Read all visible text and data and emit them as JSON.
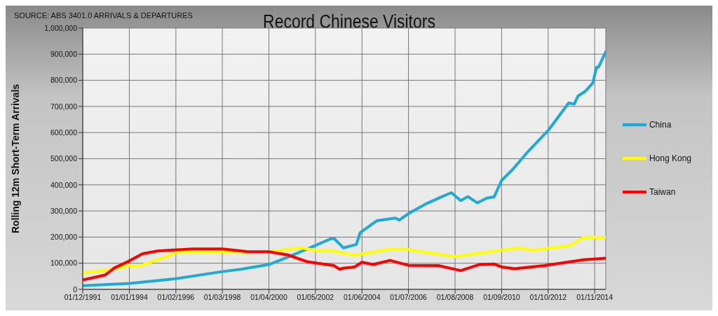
{
  "chart_data": {
    "type": "line",
    "title": "Record Chinese Visitors",
    "ylabel": "Rolling 12m Short-Term Arrivals",
    "annotations": [
      "SOURCE: ABS 3401.0 ARRIVALS & DEPARTURES"
    ],
    "series": [
      {
        "name": "China",
        "color": "#1ea9d8",
        "x": [
          "1991-12",
          "1994-01",
          "1996-02",
          "1998-03",
          "1999-01",
          "2000-04",
          "2001-02",
          "2002-05",
          "2003-01",
          "2003-03",
          "2003-08",
          "2004-03",
          "2004-05",
          "2005-02",
          "2005-12",
          "2006-02",
          "2006-07",
          "2007-04",
          "2008-01",
          "2008-06",
          "2008-11",
          "2009-03",
          "2009-08",
          "2010-01",
          "2010-05",
          "2010-09",
          "2011-03",
          "2011-11",
          "2012-10",
          "2013-09",
          "2013-12",
          "2014-02",
          "2014-06",
          "2014-10",
          "2014-12",
          "2015-01",
          "2015-05"
        ],
        "values": [
          14000,
          23000,
          41000,
          68000,
          77000,
          95000,
          123000,
          168000,
          193000,
          195000,
          159000,
          172000,
          217000,
          263000,
          273000,
          265000,
          290000,
          326000,
          355000,
          370000,
          340000,
          355000,
          331000,
          349000,
          354000,
          417000,
          459000,
          526000,
          608000,
          713000,
          709000,
          740000,
          758000,
          790000,
          850000,
          850000,
          909000
        ]
      },
      {
        "name": "Hong Kong",
        "color": "#ffff00",
        "x": [
          "1991-12",
          "1992-12",
          "1994-01",
          "1994-07",
          "1995-08",
          "1996-02",
          "1996-11",
          "1998-03",
          "1999-04",
          "2000-04",
          "2001-09",
          "2002-05",
          "2003-03",
          "2004-02",
          "2005-09",
          "2006-07",
          "2008-08",
          "2010-09",
          "2011-06",
          "2012-02",
          "2013-04",
          "2013-10",
          "2014-05",
          "2015-05"
        ],
        "values": [
          64000,
          73000,
          91000,
          91000,
          123000,
          141000,
          145000,
          145000,
          141000,
          145000,
          159000,
          150000,
          147000,
          131000,
          154000,
          152000,
          126000,
          150000,
          159000,
          150000,
          163000,
          168000,
          199000,
          199000
        ]
      },
      {
        "name": "Taiwan",
        "color": "#ff0000",
        "x": [
          "1991-12",
          "1992-12",
          "1993-05",
          "1994-01",
          "1994-08",
          "1995-04",
          "1996-11",
          "1998-03",
          "1999-04",
          "2000-04",
          "2001-02",
          "2002-01",
          "2003-03",
          "2003-06",
          "2003-08",
          "2004-02",
          "2004-06",
          "2004-12",
          "2005-09",
          "2006-07",
          "2007-11",
          "2008-11",
          "2009-09",
          "2010-05",
          "2010-09",
          "2011-04",
          "2012-08",
          "2014-05",
          "2015-05"
        ],
        "values": [
          36000,
          55000,
          82000,
          109000,
          136000,
          147000,
          155000,
          155000,
          145000,
          144000,
          132000,
          105000,
          91000,
          77000,
          81000,
          86000,
          104000,
          95000,
          111000,
          92000,
          91000,
          72000,
          95000,
          97000,
          86000,
          79000,
          91000,
          113000,
          119000
        ]
      }
    ],
    "xlim": [
      "1991-12",
      "2015-05"
    ],
    "xticks": [
      {
        "value": "1991-12-01",
        "label": "01/12/1991"
      },
      {
        "value": "1994-01-01",
        "label": "01/01/1994"
      },
      {
        "value": "1996-02-01",
        "label": "01/02/1996"
      },
      {
        "value": "1998-03-01",
        "label": "01/03/1998"
      },
      {
        "value": "2000-04-01",
        "label": "01/04/2000"
      },
      {
        "value": "2002-05-01",
        "label": "01/05/2002"
      },
      {
        "value": "2004-06-01",
        "label": "01/06/2004"
      },
      {
        "value": "2006-07-01",
        "label": "01/07/2006"
      },
      {
        "value": "2008-08-01",
        "label": "01/08/2008"
      },
      {
        "value": "2010-09-01",
        "label": "01/09/2010"
      },
      {
        "value": "2012-10-01",
        "label": "01/10/2012"
      },
      {
        "value": "2014-11-01",
        "label": "01/11/2014"
      }
    ],
    "ylim": [
      0,
      1000000
    ],
    "yticks": [
      0,
      {
        "value": 100000,
        "label": "100,000"
      },
      {
        "value": 200000,
        "label": "200,000"
      },
      {
        "value": 300000,
        "label": "300,000"
      },
      {
        "value": 400000,
        "label": "400,000"
      },
      {
        "value": 500000,
        "label": "500,000"
      },
      {
        "value": 600000,
        "label": "600,000"
      },
      {
        "value": 700000,
        "label": "700,000"
      },
      {
        "value": 800000,
        "label": "800,000"
      },
      {
        "value": 900000,
        "label": "900,000"
      },
      {
        "value": 1000000,
        "label": "1,000,000"
      }
    ],
    "grid": true,
    "legend": "right",
    "marker": "none",
    "line_style": "solid"
  }
}
